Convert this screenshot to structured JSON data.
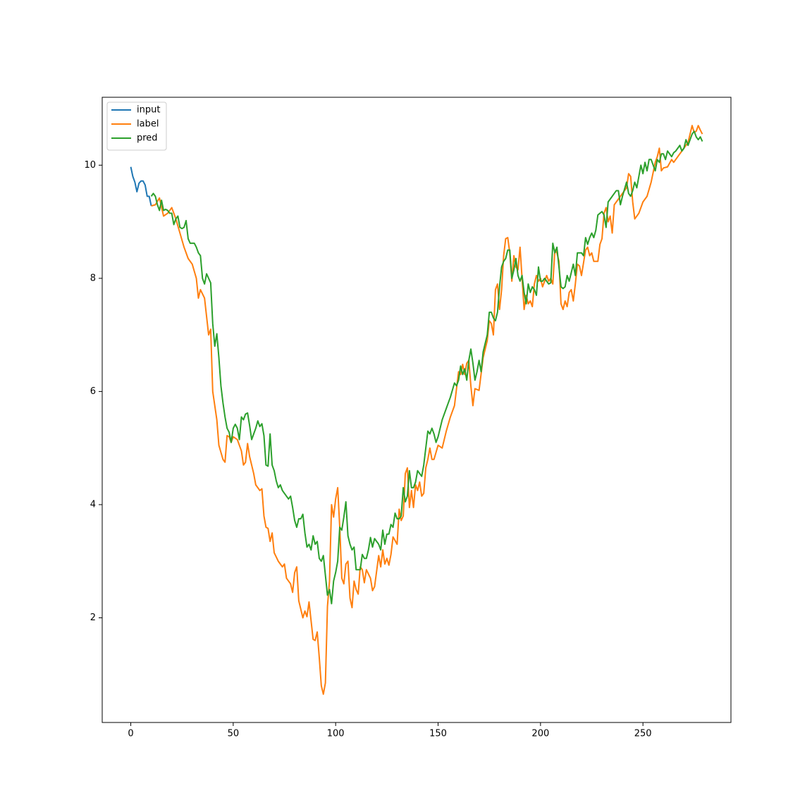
{
  "chart_data": {
    "type": "line",
    "xlim": [
      -13.95,
      292.95
    ],
    "ylim": [
      0.15,
      11.2
    ],
    "xticks": [
      0,
      50,
      100,
      150,
      200,
      250
    ],
    "yticks": [
      2,
      4,
      6,
      8,
      10
    ],
    "grid": false,
    "legend": "upper left",
    "series": [
      {
        "name": "input",
        "color": "#1f77b4",
        "x": [
          0,
          1,
          2,
          3,
          4,
          5,
          6,
          7,
          8,
          9,
          10
        ],
        "values": [
          9.97,
          9.8,
          9.7,
          9.53,
          9.68,
          9.72,
          9.72,
          9.65,
          9.45,
          9.45,
          9.28
        ]
      },
      {
        "name": "label",
        "color": "#ff7f0e",
        "x": [
          10,
          12,
          14,
          16,
          18,
          20,
          22,
          24,
          26,
          28,
          30,
          32,
          33,
          34,
          36,
          38,
          39,
          40,
          42,
          43,
          45,
          46,
          47,
          48,
          49,
          50,
          52,
          54,
          55,
          56,
          57,
          58,
          60,
          61,
          63,
          64,
          65,
          66,
          67,
          68,
          69,
          70,
          72,
          74,
          75,
          76,
          78,
          79,
          80,
          81,
          82,
          84,
          85,
          86,
          87,
          88,
          89,
          90,
          91,
          92,
          93,
          94,
          95,
          96,
          97,
          98,
          99,
          100,
          101,
          102,
          103,
          104,
          105,
          106,
          107,
          108,
          109,
          110,
          111,
          112,
          113,
          114,
          115,
          117,
          118,
          119,
          121,
          122,
          123,
          124,
          125,
          126,
          127,
          128,
          130,
          131,
          132,
          133,
          134,
          135,
          136,
          137,
          138,
          139,
          140,
          141,
          142,
          143,
          144,
          145,
          146,
          147,
          148,
          150,
          152,
          154,
          156,
          158,
          160,
          161,
          162,
          163,
          164,
          165,
          166,
          167,
          168,
          170,
          172,
          174,
          175,
          176,
          177,
          178,
          179,
          180,
          181,
          182,
          183,
          184,
          185,
          186,
          187,
          188,
          189,
          190,
          191,
          192,
          193,
          194,
          195,
          196,
          197,
          198,
          199,
          200,
          201,
          203,
          204,
          205,
          206,
          207,
          208,
          209,
          210,
          211,
          212,
          213,
          214,
          215,
          216,
          217,
          218,
          219,
          220,
          222,
          223,
          224,
          225,
          226,
          228,
          229,
          230,
          231,
          232,
          233,
          234,
          235,
          236,
          238,
          240,
          242,
          243,
          244,
          245,
          246,
          248,
          250,
          251,
          252,
          254,
          256,
          257,
          258,
          259,
          260,
          262,
          264,
          265,
          266,
          268,
          270,
          272,
          273,
          274,
          275,
          276,
          277,
          278,
          279
        ],
        "values": [
          9.28,
          9.3,
          9.42,
          9.1,
          9.15,
          9.25,
          9.05,
          8.8,
          8.55,
          8.35,
          8.25,
          8.0,
          7.65,
          7.8,
          7.65,
          7.0,
          7.1,
          6.0,
          5.5,
          5.05,
          4.8,
          4.75,
          5.22,
          5.2,
          5.1,
          5.2,
          5.15,
          4.95,
          4.7,
          4.75,
          5.08,
          4.85,
          4.55,
          4.35,
          4.25,
          4.28,
          3.8,
          3.6,
          3.58,
          3.35,
          3.5,
          3.15,
          3.0,
          2.9,
          2.95,
          2.7,
          2.6,
          2.45,
          2.8,
          2.9,
          2.3,
          2.0,
          2.12,
          2.02,
          2.28,
          1.95,
          1.62,
          1.6,
          1.75,
          1.3,
          0.8,
          0.65,
          0.85,
          2.2,
          2.65,
          4.0,
          3.78,
          4.1,
          4.3,
          3.6,
          2.7,
          2.6,
          2.95,
          3.0,
          2.35,
          2.18,
          2.65,
          2.5,
          2.42,
          2.9,
          2.85,
          2.62,
          2.85,
          2.7,
          2.48,
          2.55,
          3.1,
          2.9,
          3.2,
          2.95,
          3.05,
          2.93,
          3.12,
          3.43,
          3.3,
          3.92,
          3.72,
          3.8,
          4.55,
          4.65,
          3.95,
          4.25,
          3.95,
          4.35,
          4.25,
          4.4,
          4.15,
          4.2,
          4.65,
          4.8,
          5.0,
          4.8,
          4.8,
          5.05,
          5.0,
          5.3,
          5.55,
          5.75,
          6.35,
          6.3,
          6.48,
          6.3,
          6.5,
          6.55,
          6.1,
          5.75,
          6.05,
          6.02,
          6.6,
          6.9,
          7.25,
          7.2,
          7.0,
          7.8,
          7.9,
          7.45,
          7.8,
          8.4,
          8.7,
          8.72,
          8.45,
          7.95,
          8.4,
          8.2,
          8.15,
          8.55,
          8.0,
          7.45,
          7.7,
          7.55,
          7.6,
          7.5,
          7.9,
          8.05,
          7.95,
          8.0,
          7.85,
          8.05,
          7.95,
          8.0,
          7.9,
          8.5,
          8.45,
          8.3,
          7.55,
          7.45,
          7.6,
          7.5,
          7.75,
          7.8,
          7.6,
          7.9,
          8.25,
          8.22,
          8.05,
          8.5,
          8.55,
          8.4,
          8.45,
          8.3,
          8.3,
          8.6,
          8.7,
          9.15,
          9.25,
          9.0,
          9.1,
          8.8,
          9.3,
          9.4,
          9.5,
          9.6,
          9.85,
          9.8,
          9.35,
          9.05,
          9.15,
          9.35,
          9.4,
          9.45,
          9.7,
          10.05,
          10.15,
          10.3,
          9.9,
          9.95,
          9.97,
          10.1,
          10.05,
          10.1,
          10.2,
          10.3,
          10.4,
          10.55,
          10.7,
          10.58,
          10.6,
          10.7,
          10.62,
          10.55
        ]
      },
      {
        "name": "pred",
        "color": "#2ca02c",
        "x": [
          10,
          11,
          12,
          13,
          14,
          15,
          16,
          17,
          18,
          19,
          20,
          21,
          22,
          23,
          24,
          25,
          26,
          27,
          28,
          29,
          30,
          31,
          32,
          33,
          34,
          35,
          36,
          37,
          38,
          39,
          40,
          41,
          42,
          43,
          44,
          45,
          46,
          47,
          48,
          49,
          50,
          51,
          52,
          53,
          54,
          55,
          56,
          57,
          58,
          59,
          60,
          61,
          62,
          63,
          64,
          65,
          66,
          67,
          68,
          69,
          70,
          71,
          72,
          73,
          74,
          75,
          76,
          77,
          78,
          79,
          80,
          81,
          82,
          83,
          84,
          85,
          86,
          87,
          88,
          89,
          90,
          91,
          92,
          93,
          94,
          95,
          96,
          97,
          98,
          99,
          100,
          101,
          102,
          103,
          104,
          105,
          106,
          107,
          108,
          109,
          110,
          111,
          112,
          113,
          114,
          115,
          116,
          117,
          118,
          119,
          120,
          121,
          122,
          123,
          124,
          125,
          126,
          127,
          128,
          129,
          130,
          131,
          132,
          133,
          134,
          135,
          136,
          137,
          138,
          139,
          140,
          141,
          142,
          143,
          144,
          145,
          146,
          147,
          148,
          149,
          150,
          152,
          154,
          156,
          158,
          159,
          160,
          161,
          162,
          163,
          164,
          165,
          166,
          167,
          168,
          169,
          170,
          171,
          172,
          174,
          175,
          176,
          177,
          178,
          179,
          180,
          181,
          182,
          183,
          184,
          185,
          186,
          187,
          188,
          189,
          190,
          191,
          192,
          193,
          194,
          195,
          196,
          197,
          198,
          199,
          200,
          201,
          202,
          203,
          204,
          205,
          206,
          207,
          208,
          209,
          210,
          211,
          212,
          213,
          214,
          215,
          216,
          217,
          218,
          220,
          221,
          222,
          223,
          224,
          225,
          226,
          227,
          228,
          229,
          230,
          231,
          232,
          233,
          234,
          235,
          236,
          237,
          238,
          239,
          240,
          242,
          243,
          244,
          245,
          246,
          247,
          248,
          249,
          250,
          251,
          252,
          253,
          254,
          255,
          256,
          257,
          258,
          259,
          260,
          261,
          262,
          263,
          264,
          265,
          266,
          267,
          268,
          269,
          270,
          271,
          272,
          273,
          274,
          275,
          276,
          277,
          278,
          279
        ],
        "values": [
          9.45,
          9.5,
          9.45,
          9.3,
          9.2,
          9.38,
          9.2,
          9.22,
          9.2,
          9.15,
          9.15,
          8.95,
          9.05,
          9.1,
          8.9,
          8.88,
          8.9,
          9.02,
          8.7,
          8.62,
          8.62,
          8.62,
          8.55,
          8.45,
          8.4,
          8.0,
          7.9,
          8.08,
          8.0,
          7.92,
          7.2,
          6.8,
          7.02,
          6.6,
          6.1,
          5.8,
          5.55,
          5.35,
          5.28,
          5.1,
          5.35,
          5.42,
          5.35,
          5.15,
          5.55,
          5.5,
          5.6,
          5.62,
          5.4,
          5.15,
          5.25,
          5.35,
          5.48,
          5.38,
          5.43,
          5.22,
          4.7,
          4.68,
          5.25,
          4.7,
          4.6,
          4.42,
          4.3,
          4.35,
          4.25,
          4.2,
          4.15,
          4.1,
          4.15,
          3.95,
          3.72,
          3.6,
          3.75,
          3.75,
          3.83,
          3.5,
          3.25,
          3.3,
          3.2,
          3.45,
          3.3,
          3.35,
          3.05,
          3.0,
          3.1,
          2.75,
          2.4,
          2.5,
          2.25,
          2.65,
          2.8,
          3.0,
          3.6,
          3.55,
          3.78,
          4.05,
          3.45,
          3.3,
          3.2,
          3.25,
          2.85,
          2.85,
          2.85,
          3.12,
          3.05,
          3.05,
          3.2,
          3.42,
          3.25,
          3.4,
          3.35,
          3.3,
          3.2,
          3.55,
          3.3,
          3.48,
          3.48,
          3.65,
          3.6,
          3.85,
          3.75,
          3.75,
          3.8,
          4.3,
          4.05,
          4.15,
          4.6,
          4.3,
          4.3,
          4.4,
          4.6,
          4.55,
          4.5,
          4.7,
          5.0,
          5.3,
          5.25,
          5.35,
          5.25,
          5.1,
          5.2,
          5.5,
          5.7,
          5.9,
          6.15,
          6.1,
          6.2,
          6.45,
          6.3,
          6.4,
          6.2,
          6.55,
          6.75,
          6.5,
          6.2,
          6.35,
          6.55,
          6.35,
          6.7,
          7.0,
          7.4,
          7.4,
          7.3,
          7.25,
          7.4,
          7.85,
          8.2,
          8.3,
          8.35,
          8.5,
          8.5,
          8.0,
          8.15,
          8.35,
          8.05,
          7.95,
          8.05,
          7.75,
          7.55,
          7.9,
          7.75,
          7.85,
          7.8,
          7.7,
          8.2,
          7.95,
          7.95,
          8.0,
          7.95,
          7.9,
          7.92,
          8.62,
          8.45,
          8.55,
          8.2,
          7.85,
          7.82,
          7.85,
          8.05,
          7.95,
          8.1,
          8.25,
          8.05,
          8.45,
          8.45,
          8.4,
          8.72,
          8.6,
          8.72,
          8.8,
          8.72,
          8.85,
          9.12,
          9.15,
          9.18,
          9.12,
          8.9,
          9.35,
          9.4,
          9.45,
          9.5,
          9.55,
          9.55,
          9.3,
          9.45,
          9.7,
          9.5,
          9.45,
          9.55,
          9.7,
          9.6,
          9.8,
          10.0,
          9.85,
          10.05,
          9.9,
          10.1,
          10.1,
          10.0,
          9.9,
          10.1,
          10.05,
          10.2,
          10.2,
          10.1,
          10.25,
          10.2,
          10.15,
          10.22,
          10.25,
          10.3,
          10.35,
          10.25,
          10.3,
          10.45,
          10.35,
          10.45,
          10.55,
          10.6,
          10.5,
          10.45,
          10.5,
          10.42
        ]
      }
    ]
  }
}
